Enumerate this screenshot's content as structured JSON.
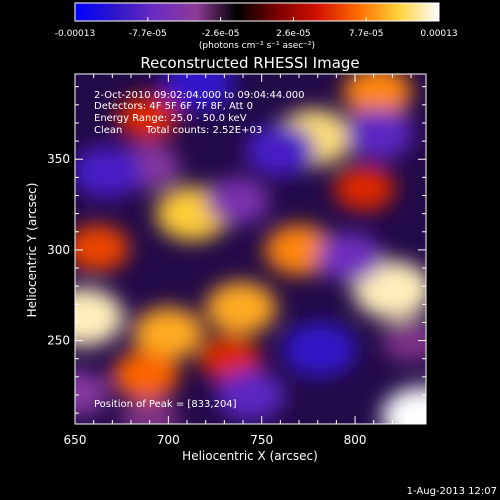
{
  "colorbar": {
    "ticks": [
      "-0.00013",
      "-7.7e-05",
      "-2.6e-05",
      "2.6e-05",
      "7.7e-05",
      "0.00013"
    ],
    "unit": "(photons cm⁻² s⁻¹ asec⁻²)",
    "colors": [
      "#0000ff",
      "#2e16c8",
      "#6c2cc0",
      "#8d3a96",
      "#000000",
      "#7a0000",
      "#d21200",
      "#ff6b00",
      "#ffd13a",
      "#ffffff"
    ]
  },
  "chart_data": {
    "type": "heatmap",
    "title": "Reconstructed RHESSI Image",
    "xlabel": "Heliocentric X (arcsec)",
    "ylabel": "Heliocentric Y (arcsec)",
    "xlim": [
      650,
      838
    ],
    "ylim": [
      204,
      397
    ],
    "x_ticks": [
      "650",
      "700",
      "750",
      "800"
    ],
    "y_ticks": [
      "250",
      "300",
      "350"
    ],
    "peak_position": [
      833,
      204
    ],
    "value_range": [
      -0.00013,
      0.00013
    ],
    "sources": [
      {
        "x": 655,
        "y": 263,
        "value": 0.00012
      },
      {
        "x": 820,
        "y": 278,
        "value": 0.00012
      },
      {
        "x": 836,
        "y": 208,
        "value": 0.00013
      },
      {
        "x": 778,
        "y": 362,
        "value": 0.00011
      },
      {
        "x": 713,
        "y": 320,
        "value": 0.0001
      },
      {
        "x": 739,
        "y": 268,
        "value": 9e-05
      },
      {
        "x": 700,
        "y": 254,
        "value": 9e-05
      },
      {
        "x": 770,
        "y": 300,
        "value": 8e-05
      },
      {
        "x": 688,
        "y": 231,
        "value": 7e-05
      },
      {
        "x": 812,
        "y": 387,
        "value": 8e-05
      },
      {
        "x": 662,
        "y": 301,
        "value": 6e-05
      },
      {
        "x": 689,
        "y": 373,
        "value": 5e-05
      },
      {
        "x": 805,
        "y": 334,
        "value": 5e-05
      },
      {
        "x": 733,
        "y": 240,
        "value": 5e-05
      },
      {
        "x": 690,
        "y": 346,
        "value": -5e-05
      },
      {
        "x": 716,
        "y": 392,
        "value": -0.0001
      },
      {
        "x": 760,
        "y": 355,
        "value": -9e-05
      },
      {
        "x": 667,
        "y": 343,
        "value": -9e-05
      },
      {
        "x": 781,
        "y": 245,
        "value": -0.0001
      },
      {
        "x": 813,
        "y": 364,
        "value": -8e-05
      },
      {
        "x": 797,
        "y": 296,
        "value": -7e-05
      },
      {
        "x": 744,
        "y": 220,
        "value": -8e-05
      },
      {
        "x": 652,
        "y": 221,
        "value": -5e-05
      },
      {
        "x": 690,
        "y": 206,
        "value": -4e-05
      },
      {
        "x": 830,
        "y": 250,
        "value": -4e-05
      },
      {
        "x": 737,
        "y": 327,
        "value": -6e-05
      }
    ]
  },
  "annotations": {
    "time_range": "2-Oct-2010 09:02:04.000 to 09:04:44.000",
    "detectors": "Detectors: 4F 5F 6F 7F 8F, Att 0",
    "energy": "Energy Range: 25.0 - 50.0 keV",
    "clean_label": "Clean",
    "total_counts": "Total counts: 2.52E+03",
    "peak": "Position of Peak = [833,204]"
  },
  "footer": {
    "timestamp": "1-Aug-2013 12:07"
  }
}
